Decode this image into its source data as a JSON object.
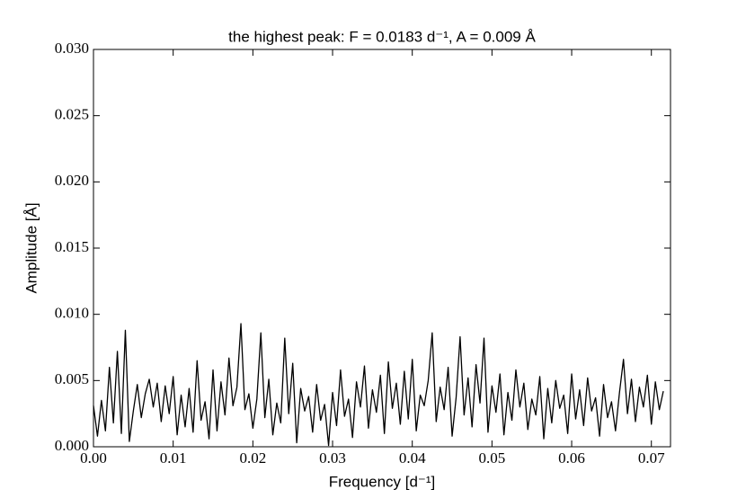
{
  "chart_data": {
    "type": "line",
    "title": "the highest peak: F = 0.0183 d⁻¹, A = 0.009 Å",
    "x_label": "Frequency [d⁻¹]",
    "y_label": "Amplitude [Å]",
    "xlim": [
      0,
      0.0724
    ],
    "ylim": [
      0,
      0.03
    ],
    "xticks": [
      {
        "value": 0,
        "label": "0.00"
      },
      {
        "value": 0.01,
        "label": "0.01"
      },
      {
        "value": 0.02,
        "label": "0.02"
      },
      {
        "value": 0.03,
        "label": "0.03"
      },
      {
        "value": 0.04,
        "label": "0.04"
      },
      {
        "value": 0.05,
        "label": "0.05"
      },
      {
        "value": 0.06,
        "label": "0.06"
      },
      {
        "value": 0.07,
        "label": "0.07"
      }
    ],
    "yticks": [
      {
        "value": 0,
        "label": "0.000"
      },
      {
        "value": 0.005,
        "label": "0.005"
      },
      {
        "value": 0.01,
        "label": "0.010"
      },
      {
        "value": 0.015,
        "label": "0.015"
      },
      {
        "value": 0.02,
        "label": "0.020"
      },
      {
        "value": 0.025,
        "label": "0.025"
      },
      {
        "value": 0.03,
        "label": "0.030"
      }
    ],
    "color": "#000000",
    "x": [
      0,
      0.0005,
      0.001,
      0.0015,
      0.002,
      0.0025,
      0.003,
      0.0035,
      0.004,
      0.0045,
      0.005,
      0.0055,
      0.006,
      0.0065,
      0.007,
      0.0075,
      0.008,
      0.0085,
      0.009,
      0.0095,
      0.01,
      0.0105,
      0.011,
      0.0115,
      0.012,
      0.0125,
      0.013,
      0.0135,
      0.014,
      0.0145,
      0.015,
      0.0155,
      0.016,
      0.0165,
      0.017,
      0.0175,
      0.018,
      0.0185,
      0.019,
      0.0195,
      0.02,
      0.0205,
      0.021,
      0.0215,
      0.022,
      0.0225,
      0.023,
      0.0235,
      0.024,
      0.0245,
      0.025,
      0.0255,
      0.026,
      0.0265,
      0.027,
      0.0275,
      0.028,
      0.0285,
      0.029,
      0.0295,
      0.03,
      0.0305,
      0.031,
      0.0315,
      0.032,
      0.0325,
      0.033,
      0.0335,
      0.034,
      0.0345,
      0.035,
      0.0355,
      0.036,
      0.0365,
      0.037,
      0.0375,
      0.038,
      0.0385,
      0.039,
      0.0395,
      0.04,
      0.0405,
      0.041,
      0.0415,
      0.042,
      0.0425,
      0.043,
      0.0435,
      0.044,
      0.0445,
      0.045,
      0.0455,
      0.046,
      0.0465,
      0.047,
      0.0475,
      0.048,
      0.0485,
      0.049,
      0.0495,
      0.05,
      0.0505,
      0.051,
      0.0515,
      0.052,
      0.0525,
      0.053,
      0.0535,
      0.054,
      0.0545,
      0.055,
      0.0555,
      0.056,
      0.0565,
      0.057,
      0.0575,
      0.058,
      0.0585,
      0.059,
      0.0595,
      0.06,
      0.0605,
      0.061,
      0.0615,
      0.062,
      0.0625,
      0.063,
      0.0635,
      0.064,
      0.0645,
      0.065,
      0.0655,
      0.066,
      0.0665,
      0.067,
      0.0675,
      0.068,
      0.0685,
      0.069,
      0.0695,
      0.07,
      0.0705,
      0.071,
      0.0715
    ],
    "values": [
      0.0031,
      0.0008,
      0.0035,
      0.0012,
      0.006,
      0.0018,
      0.0072,
      0.001,
      0.0088,
      0.0004,
      0.0027,
      0.0047,
      0.0022,
      0.004,
      0.0051,
      0.003,
      0.0048,
      0.0019,
      0.0046,
      0.0025,
      0.0053,
      0.0009,
      0.0039,
      0.0015,
      0.0044,
      0.0011,
      0.0065,
      0.002,
      0.0034,
      0.0006,
      0.0058,
      0.0012,
      0.0049,
      0.0024,
      0.0067,
      0.0031,
      0.0045,
      0.0093,
      0.0028,
      0.004,
      0.0014,
      0.0036,
      0.0086,
      0.0022,
      0.0051,
      0.0009,
      0.0033,
      0.0018,
      0.0082,
      0.0025,
      0.0063,
      0.0003,
      0.0044,
      0.0027,
      0.0038,
      0.0011,
      0.0047,
      0.002,
      0.0032,
      0.0001,
      0.0041,
      0.0016,
      0.0058,
      0.0023,
      0.0036,
      0.0007,
      0.0049,
      0.003,
      0.0061,
      0.0014,
      0.0043,
      0.0026,
      0.0054,
      0.001,
      0.0064,
      0.0029,
      0.0048,
      0.0017,
      0.0057,
      0.0021,
      0.0066,
      0.0012,
      0.0039,
      0.0031,
      0.005,
      0.0086,
      0.0019,
      0.0045,
      0.0028,
      0.006,
      0.0008,
      0.0037,
      0.0083,
      0.0024,
      0.0052,
      0.0015,
      0.0062,
      0.0033,
      0.0082,
      0.0011,
      0.0046,
      0.0026,
      0.0055,
      0.0009,
      0.0041,
      0.002,
      0.0058,
      0.003,
      0.0048,
      0.0013,
      0.0036,
      0.0024,
      0.0053,
      0.0006,
      0.0044,
      0.0018,
      0.005,
      0.0029,
      0.0039,
      0.001,
      0.0055,
      0.0021,
      0.0043,
      0.0016,
      0.0052,
      0.0027,
      0.0037,
      0.0008,
      0.0047,
      0.0022,
      0.0034,
      0.0012,
      0.0041,
      0.0066,
      0.0025,
      0.0051,
      0.0019,
      0.0045,
      0.003,
      0.0054,
      0.0017,
      0.0049,
      0.0028,
      0.0042
    ]
  }
}
